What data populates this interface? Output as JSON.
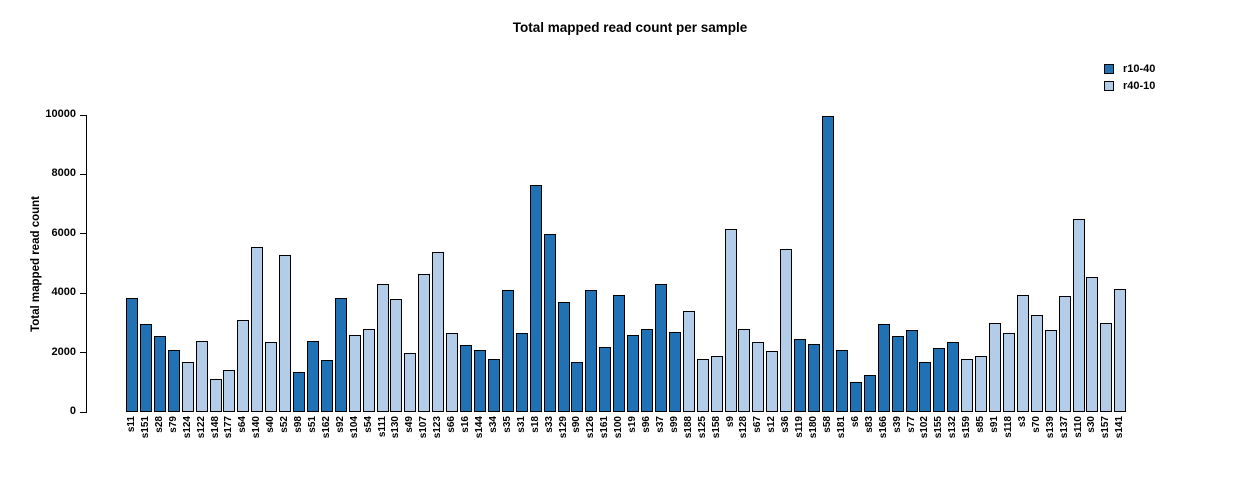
{
  "title": "Total mapped read count per sample",
  "y_axis": {
    "label": "Total mapped read count"
  },
  "legend": {
    "items": [
      {
        "label": "r10-40"
      },
      {
        "label": "r40-10"
      }
    ]
  },
  "colors": {
    "r10-40": "#2171b5",
    "r40-10": "#b3cce8",
    "bar_border": "#000000"
  },
  "chart_data": {
    "type": "bar",
    "title": "Total mapped read count per sample",
    "xlabel": "",
    "ylabel": "Total mapped read count",
    "ylim": [
      0,
      10000
    ],
    "yticks": [
      0,
      2000,
      4000,
      6000,
      8000,
      10000
    ],
    "grid": false,
    "legend_position": "top-right",
    "series_colors": {
      "r10-40": "#2171b5",
      "r40-10": "#b3cce8"
    },
    "samples": [
      {
        "name": "s11",
        "group": "r10-40",
        "value": 3850
      },
      {
        "name": "s151",
        "group": "r10-40",
        "value": 2950
      },
      {
        "name": "s28",
        "group": "r10-40",
        "value": 2550
      },
      {
        "name": "s79",
        "group": "r10-40",
        "value": 2100
      },
      {
        "name": "s124",
        "group": "r40-10",
        "value": 1700
      },
      {
        "name": "s122",
        "group": "r40-10",
        "value": 2400
      },
      {
        "name": "s148",
        "group": "r40-10",
        "value": 1100
      },
      {
        "name": "s177",
        "group": "r40-10",
        "value": 1400
      },
      {
        "name": "s64",
        "group": "r40-10",
        "value": 3100
      },
      {
        "name": "s140",
        "group": "r40-10",
        "value": 5550
      },
      {
        "name": "s40",
        "group": "r40-10",
        "value": 2350
      },
      {
        "name": "s52",
        "group": "r40-10",
        "value": 5300
      },
      {
        "name": "s98",
        "group": "r10-40",
        "value": 1350
      },
      {
        "name": "s51",
        "group": "r10-40",
        "value": 2400
      },
      {
        "name": "s162",
        "group": "r10-40",
        "value": 1750
      },
      {
        "name": "s92",
        "group": "r10-40",
        "value": 3850
      },
      {
        "name": "s104",
        "group": "r40-10",
        "value": 2600
      },
      {
        "name": "s54",
        "group": "r40-10",
        "value": 2800
      },
      {
        "name": "s111",
        "group": "r40-10",
        "value": 4300
      },
      {
        "name": "s130",
        "group": "r40-10",
        "value": 3800
      },
      {
        "name": "s49",
        "group": "r40-10",
        "value": 2000
      },
      {
        "name": "s107",
        "group": "r40-10",
        "value": 4650
      },
      {
        "name": "s123",
        "group": "r40-10",
        "value": 5400
      },
      {
        "name": "s66",
        "group": "r40-10",
        "value": 2650
      },
      {
        "name": "s16",
        "group": "r10-40",
        "value": 2250
      },
      {
        "name": "s144",
        "group": "r10-40",
        "value": 2100
      },
      {
        "name": "s34",
        "group": "r10-40",
        "value": 1800
      },
      {
        "name": "s35",
        "group": "r10-40",
        "value": 4100
      },
      {
        "name": "s31",
        "group": "r10-40",
        "value": 2650
      },
      {
        "name": "s18",
        "group": "r10-40",
        "value": 7650
      },
      {
        "name": "s33",
        "group": "r10-40",
        "value": 6000
      },
      {
        "name": "s129",
        "group": "r10-40",
        "value": 3700
      },
      {
        "name": "s90",
        "group": "r10-40",
        "value": 1700
      },
      {
        "name": "s126",
        "group": "r10-40",
        "value": 4100
      },
      {
        "name": "s161",
        "group": "r10-40",
        "value": 2200
      },
      {
        "name": "s100",
        "group": "r10-40",
        "value": 3950
      },
      {
        "name": "s19",
        "group": "r10-40",
        "value": 2600
      },
      {
        "name": "s96",
        "group": "r10-40",
        "value": 2800
      },
      {
        "name": "s37",
        "group": "r10-40",
        "value": 4300
      },
      {
        "name": "s99",
        "group": "r10-40",
        "value": 2700
      },
      {
        "name": "s188",
        "group": "r40-10",
        "value": 3400
      },
      {
        "name": "s125",
        "group": "r40-10",
        "value": 1800
      },
      {
        "name": "s158",
        "group": "r40-10",
        "value": 1900
      },
      {
        "name": "s9",
        "group": "r40-10",
        "value": 6150
      },
      {
        "name": "s128",
        "group": "r40-10",
        "value": 2800
      },
      {
        "name": "s67",
        "group": "r40-10",
        "value": 2350
      },
      {
        "name": "s12",
        "group": "r40-10",
        "value": 2050
      },
      {
        "name": "s36",
        "group": "r40-10",
        "value": 5500
      },
      {
        "name": "s119",
        "group": "r10-40",
        "value": 2450
      },
      {
        "name": "s180",
        "group": "r10-40",
        "value": 2300
      },
      {
        "name": "s58",
        "group": "r10-40",
        "value": 9950
      },
      {
        "name": "s181",
        "group": "r10-40",
        "value": 2100
      },
      {
        "name": "s6",
        "group": "r10-40",
        "value": 1000
      },
      {
        "name": "s83",
        "group": "r10-40",
        "value": 1250
      },
      {
        "name": "s166",
        "group": "r10-40",
        "value": 2950
      },
      {
        "name": "s39",
        "group": "r10-40",
        "value": 2550
      },
      {
        "name": "s77",
        "group": "r10-40",
        "value": 2750
      },
      {
        "name": "s102",
        "group": "r10-40",
        "value": 1700
      },
      {
        "name": "s155",
        "group": "r10-40",
        "value": 2150
      },
      {
        "name": "s132",
        "group": "r10-40",
        "value": 2350
      },
      {
        "name": "s159",
        "group": "r40-10",
        "value": 1800
      },
      {
        "name": "s85",
        "group": "r40-10",
        "value": 1900
      },
      {
        "name": "s91",
        "group": "r40-10",
        "value": 3000
      },
      {
        "name": "s118",
        "group": "r40-10",
        "value": 2650
      },
      {
        "name": "s3",
        "group": "r40-10",
        "value": 3950
      },
      {
        "name": "s70",
        "group": "r40-10",
        "value": 3250
      },
      {
        "name": "s139",
        "group": "r40-10",
        "value": 2750
      },
      {
        "name": "s137",
        "group": "r40-10",
        "value": 3900
      },
      {
        "name": "s110",
        "group": "r40-10",
        "value": 6500
      },
      {
        "name": "s30",
        "group": "r40-10",
        "value": 4550
      },
      {
        "name": "s157",
        "group": "r40-10",
        "value": 3000
      },
      {
        "name": "s141",
        "group": "r40-10",
        "value": 4150
      }
    ]
  }
}
